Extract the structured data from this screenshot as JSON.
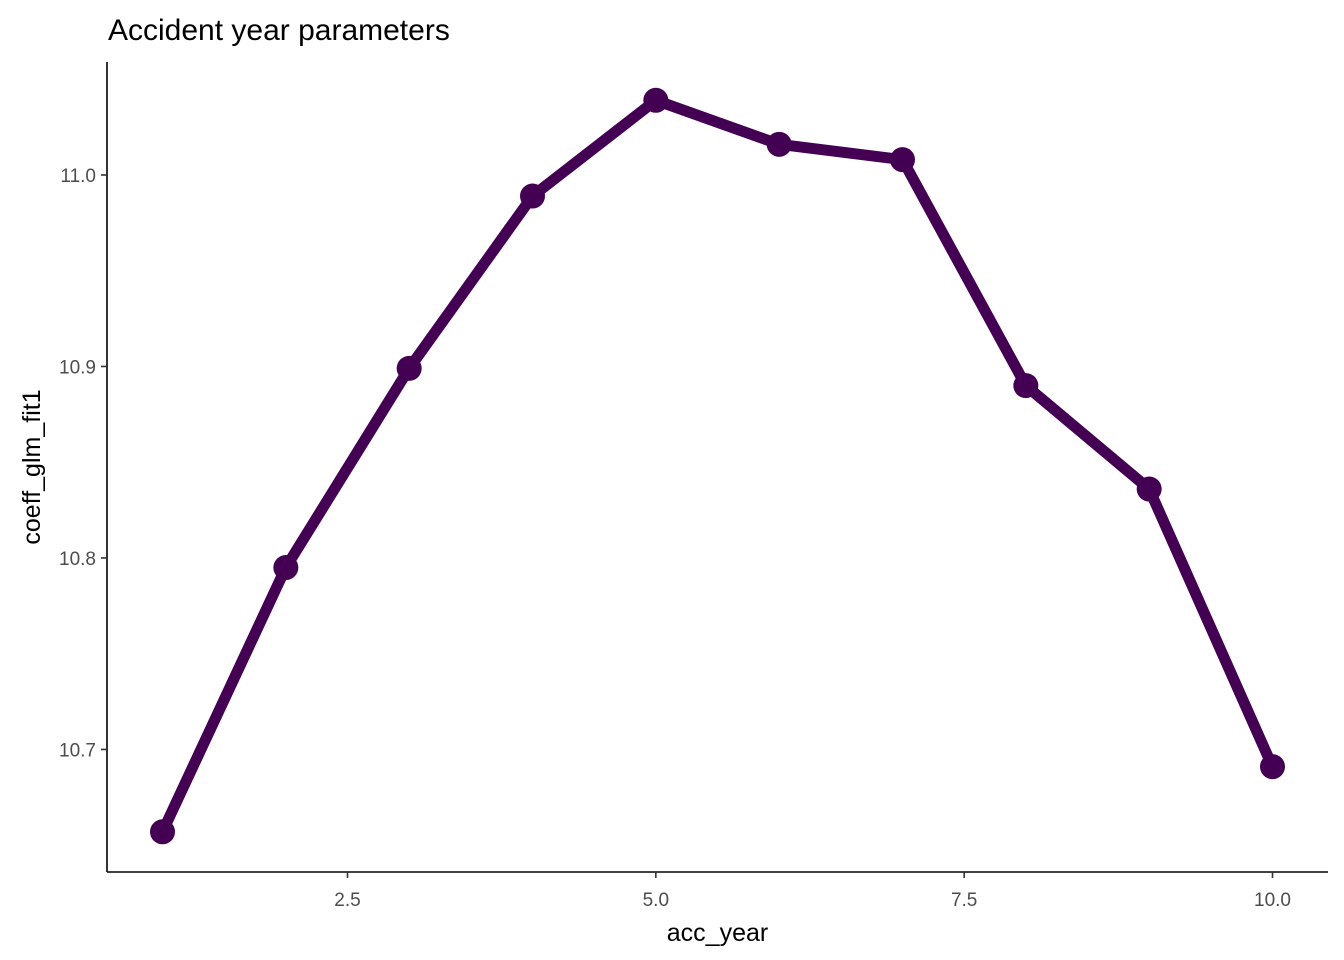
{
  "chart_data": {
    "type": "line",
    "title": "Accident year parameters",
    "xlabel": "acc_year",
    "ylabel": "coeff_glm_fit1",
    "x": [
      1,
      2,
      3,
      4,
      5,
      6,
      7,
      8,
      9,
      10
    ],
    "series": [
      {
        "values": [
          10.657,
          10.795,
          10.899,
          10.989,
          11.039,
          11.016,
          11.008,
          10.89,
          10.836,
          10.691
        ],
        "color": "#440154"
      }
    ],
    "xlim": [
      0.55,
      10.45
    ],
    "ylim": [
      10.636,
      11.059
    ],
    "x_ticks": [
      2.5,
      5.0,
      7.5,
      10.0
    ],
    "x_tick_labels": [
      "2.5",
      "5.0",
      "7.5",
      "10.0"
    ],
    "y_ticks": [
      10.7,
      10.8,
      10.9,
      11.0
    ],
    "y_tick_labels": [
      "10.7",
      "10.8",
      "10.9",
      "11.0"
    ],
    "grid": false,
    "legend": "none",
    "markers": true
  }
}
